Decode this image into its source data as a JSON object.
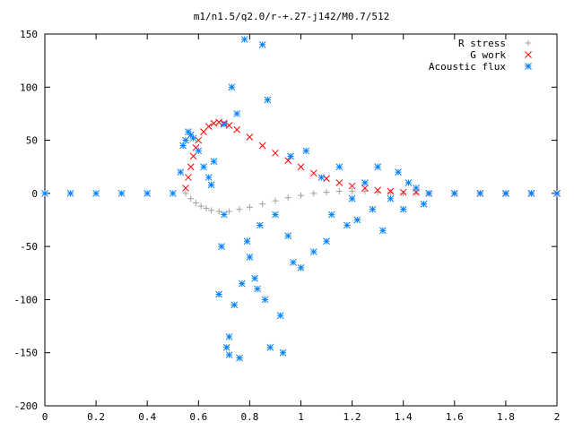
{
  "chart_data": {
    "type": "scatter",
    "title": "m1/n1.5/q2.0/r-+.27-j142/M0.7/512",
    "xlabel": "",
    "ylabel": "",
    "xlim": [
      0,
      2
    ],
    "ylim": [
      -200,
      150
    ],
    "x_ticks": [
      0,
      0.2,
      0.4,
      0.6,
      0.8,
      1,
      1.2,
      1.4,
      1.6,
      1.8,
      2
    ],
    "x_tick_labels": [
      "0",
      "0.2",
      "0.4",
      "0.6",
      "0.8",
      "1",
      "1.2",
      "1.4",
      "1.6",
      "1.8",
      "2"
    ],
    "y_ticks": [
      -200,
      -150,
      -100,
      -50,
      0,
      50,
      100,
      150
    ],
    "y_tick_labels": [
      "-200",
      "-150",
      "-100",
      "-50",
      "0",
      "50",
      "100",
      "150"
    ],
    "grid": false,
    "legend_position": "top-right",
    "series": [
      {
        "name": "R stress",
        "marker": "plus",
        "color": "#a0a0a0",
        "x": [
          0.55,
          0.57,
          0.59,
          0.61,
          0.63,
          0.65,
          0.68,
          0.72,
          0.76,
          0.8,
          0.85,
          0.9,
          0.95,
          1.0,
          1.05,
          1.1,
          1.15,
          1.2,
          1.25,
          1.3,
          1.35,
          1.4,
          1.45,
          1.5,
          1.6,
          1.7,
          1.8,
          1.9,
          2.0
        ],
        "y": [
          0,
          -5,
          -9,
          -12,
          -14,
          -16,
          -17,
          -17,
          -15,
          -13,
          -10,
          -7,
          -4,
          -2,
          0,
          1,
          2,
          2,
          2,
          1,
          1,
          0,
          0,
          0,
          0,
          0,
          0,
          0,
          0
        ]
      },
      {
        "name": "G work",
        "marker": "x",
        "color": "#ff0000",
        "x": [
          0.55,
          0.56,
          0.57,
          0.58,
          0.59,
          0.6,
          0.62,
          0.64,
          0.66,
          0.68,
          0.7,
          0.72,
          0.75,
          0.8,
          0.85,
          0.9,
          0.95,
          1.0,
          1.05,
          1.1,
          1.15,
          1.2,
          1.25,
          1.3,
          1.35,
          1.4,
          1.45,
          1.5,
          1.6,
          1.7,
          1.8,
          1.9,
          2.0
        ],
        "y": [
          5,
          15,
          25,
          35,
          43,
          50,
          58,
          63,
          66,
          67,
          66,
          64,
          60,
          53,
          45,
          38,
          31,
          25,
          19,
          14,
          10,
          7,
          5,
          3,
          2,
          1,
          1,
          0,
          0,
          0,
          0,
          0,
          0
        ]
      },
      {
        "name": "Acoustic flux",
        "marker": "asterisk",
        "color": "#0080ff",
        "x": [
          0.0,
          0.1,
          0.2,
          0.3,
          0.4,
          0.5,
          0.53,
          0.54,
          0.55,
          0.56,
          0.57,
          0.58,
          0.6,
          0.62,
          0.64,
          0.65,
          0.66,
          0.68,
          0.69,
          0.7,
          0.7,
          0.71,
          0.72,
          0.72,
          0.73,
          0.74,
          0.75,
          0.76,
          0.77,
          0.78,
          0.79,
          0.8,
          0.82,
          0.83,
          0.84,
          0.85,
          0.86,
          0.87,
          0.88,
          0.9,
          0.92,
          0.93,
          0.95,
          0.96,
          0.97,
          1.0,
          1.02,
          1.05,
          1.08,
          1.1,
          1.12,
          1.15,
          1.18,
          1.2,
          1.22,
          1.25,
          1.28,
          1.3,
          1.32,
          1.35,
          1.38,
          1.4,
          1.42,
          1.45,
          1.48,
          1.5,
          1.6,
          1.7,
          1.8,
          1.9,
          2.0
        ],
        "y": [
          0,
          0,
          0,
          0,
          0,
          0,
          20,
          45,
          50,
          58,
          55,
          52,
          40,
          25,
          15,
          8,
          30,
          -95,
          -50,
          -20,
          65,
          -145,
          -135,
          -152,
          100,
          -105,
          75,
          -155,
          -85,
          145,
          -45,
          -60,
          -80,
          -90,
          -30,
          140,
          -100,
          88,
          -145,
          -20,
          -115,
          -150,
          -40,
          35,
          -65,
          -70,
          40,
          -55,
          15,
          -45,
          -20,
          25,
          -30,
          -5,
          -25,
          10,
          -15,
          25,
          -35,
          -5,
          20,
          -15,
          10,
          5,
          -10,
          0,
          0,
          0,
          0,
          0,
          0
        ]
      }
    ]
  }
}
